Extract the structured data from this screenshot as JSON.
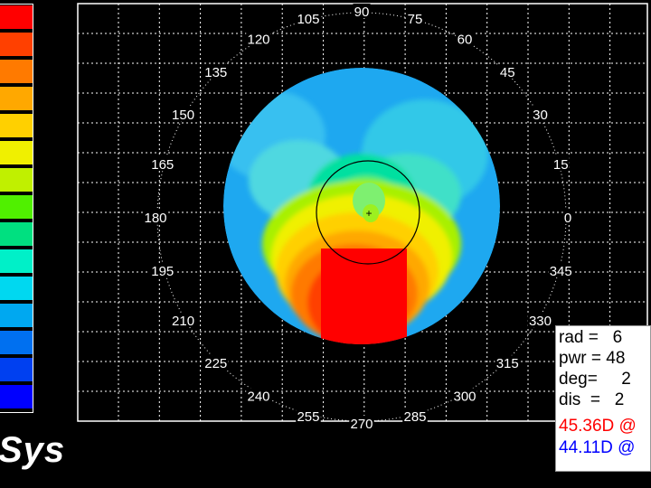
{
  "brand": {
    "text": "Sys"
  },
  "legend": {
    "colors": [
      "#ff0000",
      "#ff4000",
      "#ff7a00",
      "#ffa800",
      "#ffd000",
      "#f0f000",
      "#c0f000",
      "#50f000",
      "#00e080",
      "#00f0c8",
      "#00d8f0",
      "#00a8f0",
      "#0070f0",
      "#0040f0",
      "#0000ff"
    ]
  },
  "map": {
    "axis_labels": [
      "0",
      "15",
      "30",
      "45",
      "60",
      "75",
      "90",
      "105",
      "120",
      "135",
      "150",
      "165",
      "180",
      "195",
      "210",
      "225",
      "240",
      "255",
      "270",
      "285",
      "300",
      "315",
      "330",
      "345"
    ],
    "marker": "+"
  },
  "readout": {
    "rad": "rad =   6",
    "pwr": "pwr = 48",
    "deg": "deg=     2",
    "dis": "dis  =   2",
    "k1": "45.36D @",
    "k2": "44.11D @",
    "k1_color": "#ff0000",
    "k2_color": "#0000ff"
  }
}
